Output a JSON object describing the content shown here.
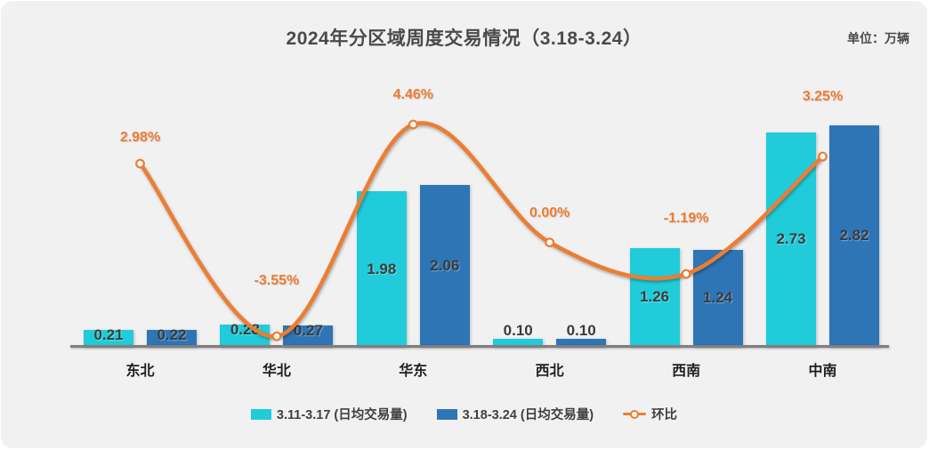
{
  "page": {
    "unit_label": "单位：万辆"
  },
  "chart_data": {
    "type": "bar",
    "subtype": "grouped-bars-with-smooth-line-overlay",
    "title": "2024年分区域周度交易情况（3.18-3.24）",
    "unit": "万辆",
    "categories": [
      "东北",
      "华北",
      "华东",
      "西北",
      "西南",
      "中南"
    ],
    "series": [
      {
        "name": "3.11-3.17 (日均交易量)",
        "type": "bar",
        "color": "#20CCD9",
        "values": [
          0.21,
          0.28,
          1.98,
          0.1,
          1.26,
          2.73
        ],
        "labels": [
          "0.21",
          "0.28",
          "1.98",
          "0.10",
          "1.26",
          "2.73"
        ]
      },
      {
        "name": "3.18-3.24 (日均交易量)",
        "type": "bar",
        "color": "#2E75B6",
        "values": [
          0.22,
          0.27,
          2.06,
          0.1,
          1.24,
          2.82
        ],
        "labels": [
          "0.22",
          "0.27",
          "2.06",
          "0.10",
          "1.24",
          "2.82"
        ]
      },
      {
        "name": "环比",
        "type": "line",
        "color": "#ED7D31",
        "marker": "circle-white-fill-orange-ring",
        "values": [
          2.98,
          -3.55,
          4.46,
          0.0,
          -1.19,
          3.25
        ],
        "labels": [
          "2.98%",
          "-3.55%",
          "4.46%",
          "0.00%",
          "-1.19%",
          "3.25%"
        ]
      }
    ],
    "axis_color": "#7f7f7f",
    "background_color": "#f1f1f2",
    "grid": false,
    "y_axis_visible": false,
    "legend_position": "bottom"
  }
}
